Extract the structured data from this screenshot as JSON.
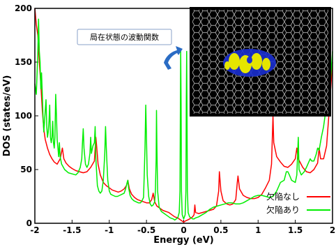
{
  "chart_data": {
    "type": "line",
    "title": "",
    "xlabel": "Energy (eV)",
    "ylabel": "DOS (states/eV)",
    "xlim": [
      -2,
      2
    ],
    "ylim": [
      0,
      200
    ],
    "xticks": [
      -2,
      -1.5,
      -1,
      -0.5,
      0,
      0.5,
      1,
      1.5,
      2
    ],
    "xtick_labels": [
      "-2",
      "-1.5",
      "-1",
      "-0.5",
      "0",
      "0.5",
      "1",
      "1.5",
      "2"
    ],
    "yticks": [
      0,
      50,
      100,
      150,
      200
    ],
    "ytick_labels": [
      "0",
      "50",
      "100",
      "150",
      "200"
    ],
    "grid": false,
    "legend_position": "bottom-right",
    "annotation": "局在状態の波動関数",
    "series": [
      {
        "name": "欠陥なし",
        "color": "#ff0000",
        "points": [
          [
            -2.0,
            200
          ],
          [
            -1.98,
            185
          ],
          [
            -1.96,
            175
          ],
          [
            -1.94,
            150
          ],
          [
            -1.92,
            130
          ],
          [
            -1.9,
            105
          ],
          [
            -1.88,
            88
          ],
          [
            -1.86,
            78
          ],
          [
            -1.83,
            70
          ],
          [
            -1.8,
            64
          ],
          [
            -1.77,
            60
          ],
          [
            -1.74,
            57
          ],
          [
            -1.7,
            55
          ],
          [
            -1.66,
            60
          ],
          [
            -1.63,
            70
          ],
          [
            -1.61,
            60
          ],
          [
            -1.58,
            56
          ],
          [
            -1.54,
            53
          ],
          [
            -1.5,
            51
          ],
          [
            -1.45,
            49
          ],
          [
            -1.4,
            48
          ],
          [
            -1.35,
            47
          ],
          [
            -1.3,
            48
          ],
          [
            -1.25,
            52
          ],
          [
            -1.2,
            58
          ],
          [
            -1.18,
            80
          ],
          [
            -1.17,
            72
          ],
          [
            -1.15,
            55
          ],
          [
            -1.12,
            45
          ],
          [
            -1.08,
            38
          ],
          [
            -1.04,
            35
          ],
          [
            -1.0,
            33
          ],
          [
            -0.96,
            31
          ],
          [
            -0.92,
            30
          ],
          [
            -0.88,
            29
          ],
          [
            -0.84,
            30
          ],
          [
            -0.8,
            32
          ],
          [
            -0.77,
            35
          ],
          [
            -0.75,
            40
          ],
          [
            -0.73,
            32
          ],
          [
            -0.7,
            27
          ],
          [
            -0.66,
            24
          ],
          [
            -0.62,
            22
          ],
          [
            -0.58,
            21
          ],
          [
            -0.54,
            20
          ],
          [
            -0.5,
            19
          ],
          [
            -0.46,
            19
          ],
          [
            -0.43,
            22
          ],
          [
            -0.41,
            28
          ],
          [
            -0.39,
            20
          ],
          [
            -0.36,
            16
          ],
          [
            -0.32,
            14
          ],
          [
            -0.28,
            12
          ],
          [
            -0.24,
            11
          ],
          [
            -0.2,
            10
          ],
          [
            -0.16,
            8
          ],
          [
            -0.12,
            6
          ],
          [
            -0.08,
            5
          ],
          [
            -0.04,
            3
          ],
          [
            -0.02,
            2
          ],
          [
            0.0,
            1
          ],
          [
            0.02,
            2
          ],
          [
            0.05,
            3
          ],
          [
            0.08,
            4
          ],
          [
            0.1,
            5
          ],
          [
            0.12,
            6
          ],
          [
            0.14,
            8
          ],
          [
            0.15,
            17
          ],
          [
            0.16,
            10
          ],
          [
            0.2,
            9
          ],
          [
            0.25,
            10
          ],
          [
            0.3,
            11
          ],
          [
            0.35,
            12
          ],
          [
            0.4,
            13
          ],
          [
            0.44,
            16
          ],
          [
            0.47,
            30
          ],
          [
            0.48,
            48
          ],
          [
            0.5,
            30
          ],
          [
            0.53,
            21
          ],
          [
            0.58,
            18
          ],
          [
            0.62,
            17
          ],
          [
            0.66,
            18
          ],
          [
            0.7,
            22
          ],
          [
            0.72,
            38
          ],
          [
            0.73,
            44
          ],
          [
            0.75,
            32
          ],
          [
            0.8,
            26
          ],
          [
            0.85,
            24
          ],
          [
            0.9,
            23
          ],
          [
            0.95,
            23
          ],
          [
            1.0,
            24
          ],
          [
            1.05,
            27
          ],
          [
            1.1,
            33
          ],
          [
            1.15,
            40
          ],
          [
            1.18,
            55
          ],
          [
            1.2,
            100
          ],
          [
            1.21,
            75
          ],
          [
            1.25,
            62
          ],
          [
            1.3,
            57
          ],
          [
            1.35,
            53
          ],
          [
            1.4,
            52
          ],
          [
            1.45,
            55
          ],
          [
            1.5,
            60
          ],
          [
            1.52,
            70
          ],
          [
            1.54,
            60
          ],
          [
            1.6,
            52
          ],
          [
            1.65,
            48
          ],
          [
            1.7,
            47
          ],
          [
            1.75,
            50
          ],
          [
            1.8,
            56
          ],
          [
            1.82,
            70
          ],
          [
            1.84,
            60
          ],
          [
            1.88,
            60
          ],
          [
            1.92,
            72
          ],
          [
            1.95,
            100
          ],
          [
            1.98,
            130
          ],
          [
            2.0,
            150
          ]
        ]
      },
      {
        "name": "欠陥あり",
        "color": "#00ee00",
        "points": [
          [
            -2.0,
            130
          ],
          [
            -1.98,
            120
          ],
          [
            -1.97,
            140
          ],
          [
            -1.96,
            160
          ],
          [
            -1.95,
            190
          ],
          [
            -1.94,
            160
          ],
          [
            -1.93,
            150
          ],
          [
            -1.92,
            125
          ],
          [
            -1.91,
            140
          ],
          [
            -1.9,
            120
          ],
          [
            -1.89,
            100
          ],
          [
            -1.88,
            85
          ],
          [
            -1.87,
            95
          ],
          [
            -1.85,
            115
          ],
          [
            -1.84,
            90
          ],
          [
            -1.83,
            80
          ],
          [
            -1.82,
            85
          ],
          [
            -1.81,
            95
          ],
          [
            -1.8,
            110
          ],
          [
            -1.79,
            80
          ],
          [
            -1.78,
            75
          ],
          [
            -1.77,
            80
          ],
          [
            -1.76,
            95
          ],
          [
            -1.75,
            75
          ],
          [
            -1.74,
            70
          ],
          [
            -1.73,
            80
          ],
          [
            -1.72,
            120
          ],
          [
            -1.71,
            100
          ],
          [
            -1.7,
            78
          ],
          [
            -1.69,
            70
          ],
          [
            -1.68,
            62
          ],
          [
            -1.67,
            75
          ],
          [
            -1.66,
            62
          ],
          [
            -1.64,
            55
          ],
          [
            -1.6,
            50
          ],
          [
            -1.55,
            47
          ],
          [
            -1.5,
            46
          ],
          [
            -1.45,
            45
          ],
          [
            -1.42,
            47
          ],
          [
            -1.39,
            52
          ],
          [
            -1.37,
            60
          ],
          [
            -1.36,
            75
          ],
          [
            -1.35,
            88
          ],
          [
            -1.34,
            70
          ],
          [
            -1.32,
            55
          ],
          [
            -1.3,
            52
          ],
          [
            -1.28,
            55
          ],
          [
            -1.26,
            65
          ],
          [
            -1.25,
            80
          ],
          [
            -1.24,
            65
          ],
          [
            -1.22,
            72
          ],
          [
            -1.2,
            75
          ],
          [
            -1.19,
            90
          ],
          [
            -1.18,
            60
          ],
          [
            -1.16,
            35
          ],
          [
            -1.14,
            30
          ],
          [
            -1.12,
            28
          ],
          [
            -1.1,
            30
          ],
          [
            -1.08,
            40
          ],
          [
            -1.06,
            65
          ],
          [
            -1.05,
            90
          ],
          [
            -1.04,
            70
          ],
          [
            -1.03,
            55
          ],
          [
            -1.02,
            40
          ],
          [
            -1.0,
            30
          ],
          [
            -0.98,
            27
          ],
          [
            -0.95,
            26
          ],
          [
            -0.92,
            25
          ],
          [
            -0.89,
            25
          ],
          [
            -0.86,
            26
          ],
          [
            -0.83,
            27
          ],
          [
            -0.8,
            28
          ],
          [
            -0.78,
            32
          ],
          [
            -0.76,
            38
          ],
          [
            -0.75,
            40
          ],
          [
            -0.74,
            33
          ],
          [
            -0.72,
            26
          ],
          [
            -0.7,
            23
          ],
          [
            -0.67,
            21
          ],
          [
            -0.64,
            20
          ],
          [
            -0.61,
            19
          ],
          [
            -0.58,
            19
          ],
          [
            -0.56,
            21
          ],
          [
            -0.54,
            24
          ],
          [
            -0.53,
            45
          ],
          [
            -0.52,
            70
          ],
          [
            -0.51,
            110
          ],
          [
            -0.5,
            80
          ],
          [
            -0.49,
            45
          ],
          [
            -0.47,
            25
          ],
          [
            -0.45,
            18
          ],
          [
            -0.43,
            16
          ],
          [
            -0.41,
            17
          ],
          [
            -0.39,
            20
          ],
          [
            -0.38,
            30
          ],
          [
            -0.37,
            60
          ],
          [
            -0.365,
            105
          ],
          [
            -0.36,
            70
          ],
          [
            -0.35,
            30
          ],
          [
            -0.33,
            15
          ],
          [
            -0.3,
            11
          ],
          [
            -0.26,
            9
          ],
          [
            -0.22,
            7
          ],
          [
            -0.18,
            5
          ],
          [
            -0.14,
            4
          ],
          [
            -0.12,
            3
          ],
          [
            -0.1,
            4
          ],
          [
            -0.08,
            5
          ],
          [
            -0.06,
            10
          ],
          [
            -0.05,
            30
          ],
          [
            -0.045,
            100
          ],
          [
            -0.04,
            160
          ],
          [
            -0.035,
            110
          ],
          [
            -0.03,
            30
          ],
          [
            -0.02,
            8
          ],
          [
            0.0,
            4
          ],
          [
            0.02,
            8
          ],
          [
            0.03,
            30
          ],
          [
            0.035,
            110
          ],
          [
            0.04,
            160
          ],
          [
            0.045,
            100
          ],
          [
            0.05,
            30
          ],
          [
            0.06,
            10
          ],
          [
            0.08,
            6
          ],
          [
            0.1,
            5
          ],
          [
            0.12,
            4
          ],
          [
            0.14,
            4
          ],
          [
            0.16,
            5
          ],
          [
            0.2,
            6
          ],
          [
            0.25,
            8
          ],
          [
            0.3,
            10
          ],
          [
            0.35,
            13
          ],
          [
            0.4,
            15
          ],
          [
            0.45,
            16
          ],
          [
            0.5,
            17
          ],
          [
            0.55,
            18
          ],
          [
            0.6,
            19
          ],
          [
            0.65,
            19
          ],
          [
            0.7,
            18
          ],
          [
            0.75,
            18
          ],
          [
            0.8,
            19
          ],
          [
            0.85,
            21
          ],
          [
            0.9,
            23
          ],
          [
            0.95,
            25
          ],
          [
            1.0,
            26
          ],
          [
            1.05,
            26
          ],
          [
            1.1,
            25
          ],
          [
            1.15,
            24
          ],
          [
            1.2,
            25
          ],
          [
            1.25,
            30
          ],
          [
            1.3,
            38
          ],
          [
            1.35,
            40
          ],
          [
            1.38,
            48
          ],
          [
            1.4,
            48
          ],
          [
            1.42,
            45
          ],
          [
            1.45,
            40
          ],
          [
            1.5,
            38
          ],
          [
            1.52,
            45
          ],
          [
            1.54,
            80
          ],
          [
            1.55,
            50
          ],
          [
            1.58,
            45
          ],
          [
            1.62,
            48
          ],
          [
            1.65,
            52
          ],
          [
            1.7,
            60
          ],
          [
            1.72,
            58
          ],
          [
            1.75,
            58
          ],
          [
            1.78,
            64
          ],
          [
            1.8,
            70
          ],
          [
            1.82,
            68
          ],
          [
            1.85,
            80
          ],
          [
            1.88,
            90
          ],
          [
            1.9,
            100
          ],
          [
            1.92,
            120
          ],
          [
            1.94,
            130
          ],
          [
            1.96,
            120
          ],
          [
            1.98,
            140
          ],
          [
            2.0,
            160
          ]
        ]
      }
    ]
  }
}
